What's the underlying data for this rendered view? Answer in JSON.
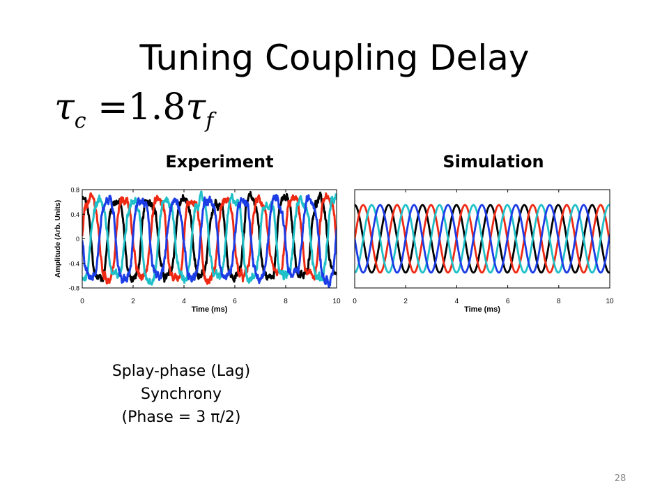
{
  "slide": {
    "title": "Tuning Coupling Delay",
    "formula": {
      "symbol": "τ",
      "sub_left": "c",
      "equals": "=",
      "value": "1.8",
      "sub_right": "f"
    },
    "caption": [
      "Splay-phase (Lag)",
      "Synchrony",
      "(Phase = 3 π/2)"
    ],
    "page_number": "28"
  },
  "colors": {
    "black": "#000000",
    "red": "#ee2a14",
    "blue": "#1c3ce6",
    "cyan": "#20c0c8"
  },
  "chart_data": [
    {
      "type": "line",
      "title": "Experiment",
      "xlabel": "Time (ms)",
      "ylabel": "Amplitude (Arb. Units)",
      "xlim": [
        0,
        10
      ],
      "ylim": [
        -0.8,
        0.8
      ],
      "xticks": [
        "0",
        "2",
        "4",
        "6",
        "8",
        "10"
      ],
      "yticks": [
        "0.8",
        "0.4",
        "0",
        "-0.4",
        "-0.8"
      ],
      "period_ms": 1.33,
      "amplitude": 0.6,
      "noisy": true,
      "series": [
        {
          "color": "#000000",
          "phase_deg": 0
        },
        {
          "color": "#ee2a14",
          "phase_deg": 90
        },
        {
          "color": "#20c0c8",
          "phase_deg": 180
        },
        {
          "color": "#1c3ce6",
          "phase_deg": 270
        }
      ]
    },
    {
      "type": "line",
      "title": "Simulation",
      "xlabel": "Time (ms)",
      "ylabel": "",
      "xlim": [
        0,
        10
      ],
      "ylim": [
        -0.8,
        0.8
      ],
      "xticks": [
        "0",
        "2",
        "4",
        "6",
        "8",
        "10"
      ],
      "yticks": [],
      "period_ms": 1.33,
      "amplitude": 0.55,
      "noisy": false,
      "series": [
        {
          "color": "#000000",
          "phase_deg": 0
        },
        {
          "color": "#ee2a14",
          "phase_deg": 90
        },
        {
          "color": "#20c0c8",
          "phase_deg": 180
        },
        {
          "color": "#1c3ce6",
          "phase_deg": 270
        }
      ]
    }
  ]
}
